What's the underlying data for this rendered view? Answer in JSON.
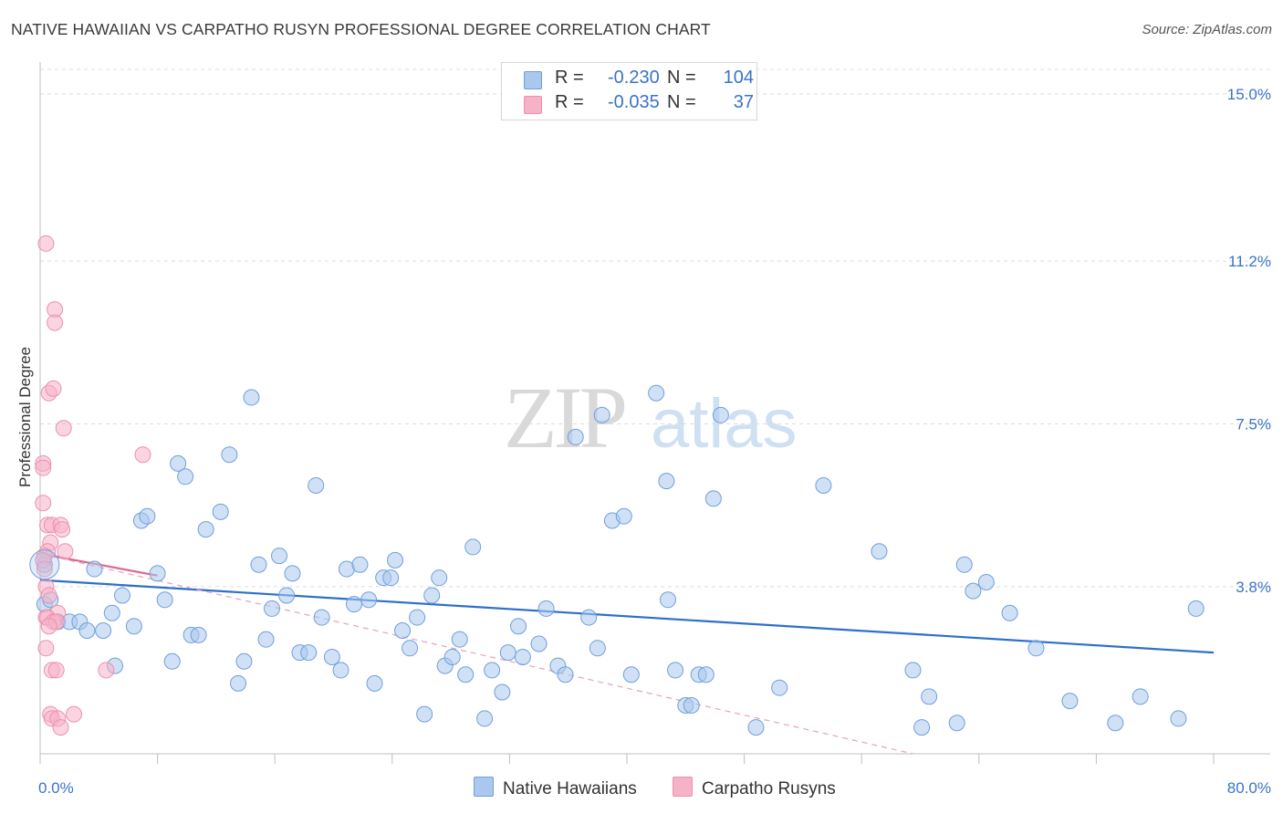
{
  "title": "NATIVE HAWAIIAN VS CARPATHO RUSYN PROFESSIONAL DEGREE CORRELATION CHART",
  "source": "Source: ZipAtlas.com",
  "watermark": {
    "zip": "ZIP",
    "atlas": "atlas"
  },
  "legend": {
    "rows": [
      {
        "r_label": "R = ",
        "r_value": "-0.230",
        "n_label": "N = ",
        "n_value": "104",
        "color": "#aac8ee"
      },
      {
        "r_label": "R = ",
        "r_value": "-0.035",
        "n_label": "N = ",
        "n_value": "37",
        "color": "#f6b3c8"
      }
    ]
  },
  "bottom_legend": [
    {
      "label": "Native Hawaiians",
      "color": "#aac8ee"
    },
    {
      "label": "Carpatho Rusyns",
      "color": "#f6b3c8"
    }
  ],
  "chart_data": {
    "type": "scatter",
    "title": "NATIVE HAWAIIAN VS CARPATHO RUSYN PROFESSIONAL DEGREE CORRELATION CHART",
    "xlabel": "",
    "ylabel": "Professional Degree",
    "xlim": [
      0,
      80
    ],
    "ylim": [
      0,
      15.6
    ],
    "x_tick_labels": [
      "0.0%",
      "80.0%"
    ],
    "y_ticks": [
      3.8,
      7.5,
      11.2,
      15.0
    ],
    "y_tick_labels": [
      "3.8%",
      "7.5%",
      "11.2%",
      "15.0%"
    ],
    "grid": true,
    "series": [
      {
        "name": "Native Hawaiians",
        "color": "#aac8ee",
        "stroke": "#6f9fdb",
        "trend": {
          "x": [
            0,
            80
          ],
          "y": [
            3.95,
            2.3
          ],
          "color": "#2e6fcc",
          "dashed": false
        },
        "points": [
          [
            0.3,
            3.4
          ],
          [
            0.7,
            3.5
          ],
          [
            1.2,
            3.0
          ],
          [
            2.0,
            3.0
          ],
          [
            2.7,
            3.0
          ],
          [
            3.2,
            2.8
          ],
          [
            3.7,
            4.2
          ],
          [
            4.3,
            2.8
          ],
          [
            4.9,
            3.2
          ],
          [
            5.1,
            2.0
          ],
          [
            5.6,
            3.6
          ],
          [
            6.4,
            2.9
          ],
          [
            6.9,
            5.3
          ],
          [
            7.3,
            5.4
          ],
          [
            8.0,
            4.1
          ],
          [
            8.5,
            3.5
          ],
          [
            9.0,
            2.1
          ],
          [
            9.4,
            6.6
          ],
          [
            9.9,
            6.3
          ],
          [
            10.3,
            2.7
          ],
          [
            10.8,
            2.7
          ],
          [
            11.3,
            5.1
          ],
          [
            12.3,
            5.5
          ],
          [
            12.9,
            6.8
          ],
          [
            13.5,
            1.6
          ],
          [
            13.9,
            2.1
          ],
          [
            14.4,
            8.1
          ],
          [
            14.9,
            4.3
          ],
          [
            15.4,
            2.6
          ],
          [
            15.8,
            3.3
          ],
          [
            16.3,
            4.5
          ],
          [
            16.8,
            3.6
          ],
          [
            17.2,
            4.1
          ],
          [
            17.7,
            2.3
          ],
          [
            18.3,
            2.3
          ],
          [
            18.8,
            6.1
          ],
          [
            19.2,
            3.1
          ],
          [
            19.9,
            2.2
          ],
          [
            20.5,
            1.9
          ],
          [
            20.9,
            4.2
          ],
          [
            21.4,
            3.4
          ],
          [
            21.8,
            4.3
          ],
          [
            22.4,
            3.5
          ],
          [
            22.8,
            1.6
          ],
          [
            23.4,
            4.0
          ],
          [
            23.9,
            4.0
          ],
          [
            24.2,
            4.4
          ],
          [
            24.7,
            2.8
          ],
          [
            25.2,
            2.4
          ],
          [
            25.7,
            3.1
          ],
          [
            26.2,
            0.9
          ],
          [
            26.7,
            3.6
          ],
          [
            27.2,
            4.0
          ],
          [
            27.6,
            2.0
          ],
          [
            28.1,
            2.2
          ],
          [
            28.6,
            2.6
          ],
          [
            29.0,
            1.8
          ],
          [
            29.5,
            4.7
          ],
          [
            30.3,
            0.8
          ],
          [
            30.8,
            1.9
          ],
          [
            31.5,
            1.4
          ],
          [
            31.9,
            2.3
          ],
          [
            32.6,
            2.9
          ],
          [
            32.9,
            2.2
          ],
          [
            34.0,
            2.5
          ],
          [
            34.5,
            3.3
          ],
          [
            35.3,
            2.0
          ],
          [
            35.8,
            1.8
          ],
          [
            36.5,
            7.2
          ],
          [
            37.4,
            3.1
          ],
          [
            38.0,
            2.4
          ],
          [
            38.3,
            7.7
          ],
          [
            39.0,
            5.3
          ],
          [
            39.8,
            5.4
          ],
          [
            40.3,
            1.8
          ],
          [
            42.0,
            8.2
          ],
          [
            42.7,
            6.2
          ],
          [
            42.8,
            3.5
          ],
          [
            43.3,
            1.9
          ],
          [
            44.0,
            1.1
          ],
          [
            44.4,
            1.1
          ],
          [
            44.9,
            1.8
          ],
          [
            45.4,
            1.8
          ],
          [
            45.9,
            5.8
          ],
          [
            46.4,
            7.7
          ],
          [
            48.8,
            0.6
          ],
          [
            50.4,
            1.5
          ],
          [
            53.4,
            6.1
          ],
          [
            57.2,
            4.6
          ],
          [
            59.5,
            1.9
          ],
          [
            60.1,
            0.6
          ],
          [
            60.6,
            1.3
          ],
          [
            62.5,
            0.7
          ],
          [
            63.0,
            4.3
          ],
          [
            63.6,
            3.7
          ],
          [
            64.5,
            3.9
          ],
          [
            66.1,
            3.2
          ],
          [
            67.9,
            2.4
          ],
          [
            70.2,
            1.2
          ],
          [
            73.3,
            0.7
          ],
          [
            75.0,
            1.3
          ],
          [
            77.6,
            0.8
          ],
          [
            78.8,
            3.3
          ],
          [
            0.3,
            4.3
          ]
        ]
      },
      {
        "name": "Carpatho Rusyns",
        "color": "#f6b3c8",
        "stroke": "#ee8fae",
        "trend_solid": {
          "x": [
            0,
            8.0
          ],
          "y": [
            4.55,
            4.05
          ],
          "color": "#e0668e"
        },
        "trend": {
          "x": [
            0,
            59.5
          ],
          "y": [
            4.55,
            0.0
          ],
          "color": "#e7a1b8",
          "dashed": true
        },
        "points": [
          [
            0.4,
            11.6
          ],
          [
            1.0,
            10.1
          ],
          [
            1.0,
            9.8
          ],
          [
            0.6,
            8.2
          ],
          [
            0.9,
            8.3
          ],
          [
            1.6,
            7.4
          ],
          [
            7.0,
            6.8
          ],
          [
            0.2,
            6.6
          ],
          [
            0.2,
            6.5
          ],
          [
            0.2,
            5.7
          ],
          [
            0.5,
            5.2
          ],
          [
            0.8,
            5.2
          ],
          [
            1.4,
            5.2
          ],
          [
            1.5,
            5.1
          ],
          [
            0.7,
            4.8
          ],
          [
            0.5,
            4.6
          ],
          [
            1.7,
            4.6
          ],
          [
            0.3,
            4.5
          ],
          [
            0.2,
            4.4
          ],
          [
            0.3,
            4.2
          ],
          [
            0.4,
            3.8
          ],
          [
            0.6,
            3.6
          ],
          [
            1.2,
            3.2
          ],
          [
            0.4,
            3.1
          ],
          [
            0.5,
            3.1
          ],
          [
            0.9,
            3.0
          ],
          [
            1.1,
            3.0
          ],
          [
            0.6,
            2.9
          ],
          [
            0.4,
            2.4
          ],
          [
            0.8,
            1.9
          ],
          [
            1.1,
            1.9
          ],
          [
            4.5,
            1.9
          ],
          [
            0.7,
            0.9
          ],
          [
            0.8,
            0.8
          ],
          [
            1.2,
            0.8
          ],
          [
            2.3,
            0.9
          ],
          [
            1.4,
            0.6
          ]
        ]
      }
    ]
  }
}
